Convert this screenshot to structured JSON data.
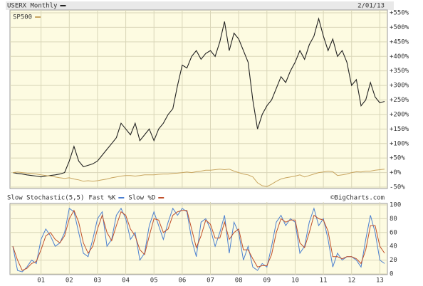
{
  "chart_data": [
    {
      "type": "line",
      "date": "2/01/13",
      "series": [
        {
          "name": "USERX Monthly",
          "color": "#222222",
          "values": [
            0,
            -3,
            -5,
            -8,
            -10,
            -12,
            -15,
            -12,
            -10,
            -8,
            -5,
            0,
            40,
            90,
            40,
            20,
            25,
            30,
            40,
            60,
            80,
            100,
            120,
            170,
            150,
            130,
            170,
            110,
            130,
            150,
            110,
            150,
            170,
            200,
            220,
            300,
            370,
            360,
            400,
            420,
            390,
            410,
            420,
            400,
            450,
            520,
            420,
            480,
            460,
            420,
            380,
            250,
            150,
            200,
            230,
            250,
            290,
            330,
            310,
            350,
            380,
            420,
            390,
            440,
            470,
            530,
            470,
            420,
            460,
            400,
            420,
            380,
            300,
            320,
            230,
            250,
            310,
            260,
            240,
            245
          ]
        },
        {
          "name": "SP500",
          "color": "#c8a560",
          "values": [
            0,
            2,
            0,
            -2,
            -3,
            -5,
            -8,
            -10,
            -12,
            -15,
            -18,
            -20,
            -18,
            -22,
            -25,
            -30,
            -28,
            -30,
            -28,
            -25,
            -22,
            -18,
            -15,
            -12,
            -10,
            -10,
            -12,
            -10,
            -8,
            -8,
            -8,
            -6,
            -5,
            -5,
            -3,
            -2,
            0,
            2,
            0,
            3,
            5,
            8,
            8,
            10,
            12,
            10,
            12,
            5,
            0,
            -5,
            -8,
            -15,
            -35,
            -45,
            -48,
            -40,
            -30,
            -22,
            -18,
            -15,
            -12,
            -8,
            -15,
            -10,
            -5,
            0,
            2,
            5,
            3,
            -10,
            -8,
            -5,
            0,
            3,
            2,
            5,
            5,
            8,
            10,
            12
          ]
        }
      ],
      "xlim": [
        0,
        79
      ],
      "ylim": [
        -50,
        550
      ],
      "yticks": [
        {
          "value": -50,
          "label": "-50%"
        },
        {
          "value": 0,
          "label": "+0%"
        },
        {
          "value": 50,
          "label": "+50%"
        },
        {
          "value": 100,
          "label": "+100%"
        },
        {
          "value": 150,
          "label": "+150%"
        },
        {
          "value": 200,
          "label": "+200%"
        },
        {
          "value": 250,
          "label": "+250%"
        },
        {
          "value": 300,
          "label": "+300%"
        },
        {
          "value": 350,
          "label": "+350%"
        },
        {
          "value": 400,
          "label": "+400%"
        },
        {
          "value": 450,
          "label": "+450%"
        },
        {
          "value": 500,
          "label": "+500%"
        },
        {
          "value": 550,
          "label": "+550%"
        }
      ],
      "grid": true
    },
    {
      "type": "line",
      "title": "Slow Stochastic(5,5)",
      "credit": "©BigCharts.com",
      "series": [
        {
          "name": "Fast %K",
          "color": "#4a7fd0",
          "values": [
            40,
            5,
            3,
            10,
            20,
            15,
            50,
            65,
            55,
            40,
            45,
            60,
            95,
            90,
            60,
            30,
            25,
            50,
            80,
            90,
            40,
            50,
            85,
            95,
            80,
            50,
            60,
            20,
            30,
            70,
            90,
            70,
            50,
            75,
            95,
            85,
            95,
            90,
            50,
            25,
            75,
            80,
            65,
            40,
            60,
            85,
            30,
            75,
            60,
            20,
            40,
            10,
            5,
            15,
            10,
            40,
            75,
            85,
            70,
            80,
            75,
            30,
            40,
            75,
            95,
            70,
            80,
            50,
            10,
            30,
            20,
            25,
            25,
            20,
            10,
            50,
            85,
            60,
            20,
            15
          ]
        },
        {
          "name": "Slow %D",
          "color": "#c0502a",
          "values": [
            40,
            20,
            5,
            8,
            15,
            18,
            35,
            55,
            60,
            50,
            45,
            55,
            80,
            92,
            75,
            45,
            30,
            40,
            65,
            85,
            60,
            48,
            70,
            90,
            85,
            65,
            55,
            35,
            28,
            55,
            80,
            78,
            60,
            65,
            85,
            90,
            92,
            92,
            65,
            38,
            55,
            78,
            72,
            52,
            52,
            75,
            50,
            60,
            65,
            35,
            35,
            22,
            10,
            12,
            12,
            28,
            60,
            80,
            75,
            78,
            78,
            45,
            38,
            60,
            85,
            80,
            78,
            62,
            25,
            25,
            22,
            25,
            25,
            22,
            15,
            35,
            70,
            70,
            40,
            30
          ]
        }
      ],
      "xlim": [
        0,
        79
      ],
      "xticks": [
        {
          "value": 6,
          "label": "01"
        },
        {
          "value": 12,
          "label": "02"
        },
        {
          "value": 18,
          "label": "03"
        },
        {
          "value": 24,
          "label": "04"
        },
        {
          "value": 30,
          "label": "05"
        },
        {
          "value": 36,
          "label": "06"
        },
        {
          "value": 42,
          "label": "07"
        },
        {
          "value": 48,
          "label": "08"
        },
        {
          "value": 54,
          "label": "09"
        },
        {
          "value": 60,
          "label": "10"
        },
        {
          "value": 66,
          "label": "11"
        },
        {
          "value": 72,
          "label": "12"
        },
        {
          "value": 78,
          "label": "13"
        }
      ],
      "ylim": [
        0,
        100
      ],
      "yticks": [
        0,
        20,
        40,
        60,
        80,
        100
      ],
      "grid": true
    }
  ]
}
